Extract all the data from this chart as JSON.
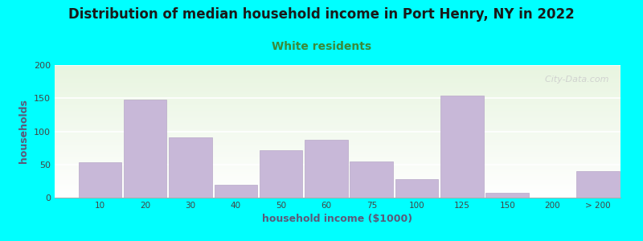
{
  "title": "Distribution of median household income in Port Henry, NY in 2022",
  "subtitle": "White residents",
  "xlabel": "household income ($1000)",
  "ylabel": "households",
  "background_color": "#00FFFF",
  "plot_bg_color_top": "#e8f5e0",
  "plot_bg_color_bottom": "#ffffff",
  "bar_color": "#c8b8d8",
  "bar_edge_color": "#b8a8c8",
  "title_fontsize": 12,
  "subtitle_fontsize": 10,
  "subtitle_color": "#3a8a3a",
  "ylabel_color": "#5a5a7a",
  "xlabel_color": "#5a5a7a",
  "watermark": "  City-Data.com",
  "tick_labels": [
    "10",
    "20",
    "30",
    "40",
    "50",
    "60",
    "75",
    "100",
    "125",
    "150",
    "200",
    "> 200"
  ],
  "bar_lefts": [
    0,
    1,
    2,
    3,
    4,
    5,
    6,
    7,
    8,
    9,
    10,
    11
  ],
  "bar_widths": [
    1,
    1,
    1,
    1,
    1,
    1,
    1,
    1,
    1,
    1,
    1,
    1
  ],
  "values": [
    53,
    148,
    91,
    20,
    72,
    87,
    55,
    28,
    154,
    7,
    0,
    40
  ],
  "xlim": [
    -0.5,
    12
  ],
  "ylim": [
    0,
    200
  ],
  "yticks": [
    0,
    50,
    100,
    150,
    200
  ]
}
